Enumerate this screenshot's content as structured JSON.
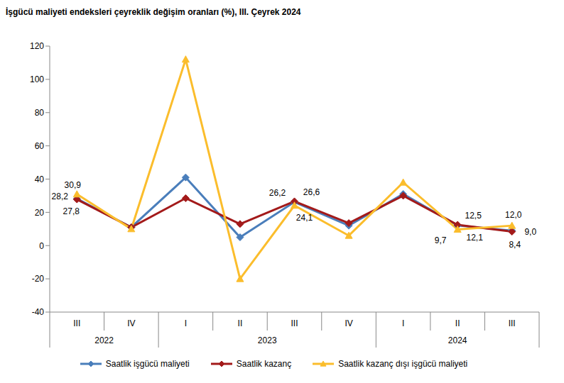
{
  "chart_data": {
    "type": "line",
    "title": "İşgücü maliyeti endeksleri çeyreklik değişim oranları (%), III. Çeyrek 2024",
    "categories": [
      "III",
      "IV",
      "I",
      "II",
      "III",
      "IV",
      "I",
      "II",
      "III"
    ],
    "years": [
      "2022",
      "2022",
      "2023",
      "2023",
      "2023",
      "2023",
      "2024",
      "2024",
      "2024"
    ],
    "ylim": [
      -40,
      120
    ],
    "yticks": [
      -40,
      -20,
      0,
      20,
      40,
      60,
      80,
      100,
      120
    ],
    "grid": false,
    "legend": "bottom",
    "data_labels": true,
    "series": [
      {
        "name": "Saatlik işgücü maliyeti",
        "color": "#4a7ebb",
        "marker": "diamond",
        "values": [
          28.2,
          11,
          41,
          5,
          26.2,
          12,
          31,
          12.1,
          9.0
        ],
        "value_labels": [
          "28,2",
          null,
          null,
          null,
          "26,2",
          null,
          null,
          "12,1",
          "9,0"
        ]
      },
      {
        "name": "Saatlik kazanç",
        "color": "#a31a1a",
        "marker": "diamond",
        "values": [
          27.8,
          11,
          28.5,
          13,
          26.6,
          13.5,
          30,
          12.5,
          8.4
        ],
        "value_labels": [
          "27,8",
          null,
          null,
          null,
          "26,6",
          null,
          null,
          "12,5",
          "8,4"
        ]
      },
      {
        "name": "Saatlik kazanç dışı işgücü maliyeti",
        "color": "#fbbd2c",
        "marker": "triangle",
        "values": [
          30.9,
          10,
          112,
          -20,
          24.1,
          6,
          38,
          9.7,
          12.0
        ],
        "value_labels": [
          "30,9",
          null,
          null,
          null,
          "24,1",
          null,
          null,
          "9,7",
          "12,0"
        ]
      }
    ]
  }
}
